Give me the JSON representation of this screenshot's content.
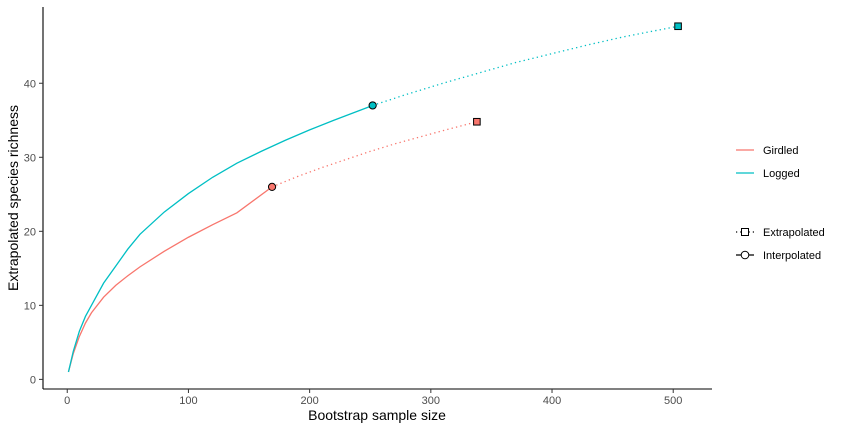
{
  "chart_data": {
    "type": "line",
    "xlabel": "Bootstrap sample size",
    "ylabel": "Extrapolated species richness",
    "xlim": [
      -20,
      532
    ],
    "ylim": [
      -1.3,
      50.3
    ],
    "xticks": [
      0,
      100,
      200,
      300,
      400,
      500
    ],
    "yticks": [
      0,
      10,
      20,
      30,
      40
    ],
    "grid": false,
    "legend_position": "right",
    "series": [
      {
        "name": "Girdled",
        "color": "#F8766D",
        "interpolated": {
          "x": [
            1,
            5,
            10,
            15,
            20,
            30,
            40,
            50,
            60,
            80,
            100,
            120,
            140,
            169
          ],
          "y": [
            1,
            3.5,
            5.8,
            7.6,
            9.0,
            11.1,
            12.7,
            14.0,
            15.2,
            17.3,
            19.2,
            20.9,
            22.5,
            26.0
          ]
        },
        "reference": {
          "x": 169,
          "y": 26.0
        },
        "extrapolated": {
          "x": [
            169,
            190,
            210,
            230,
            250,
            270,
            290,
            310,
            338
          ],
          "y": [
            26.0,
            27.4,
            28.6,
            29.7,
            30.8,
            31.8,
            32.7,
            33.6,
            34.8
          ]
        },
        "endpoint": {
          "x": 338,
          "y": 34.8
        }
      },
      {
        "name": "Logged",
        "color": "#00BFC4",
        "interpolated": {
          "x": [
            1,
            5,
            10,
            15,
            20,
            30,
            40,
            50,
            60,
            80,
            100,
            120,
            140,
            160,
            180,
            200,
            220,
            252
          ],
          "y": [
            1,
            3.8,
            6.5,
            8.5,
            10.0,
            13.0,
            15.3,
            17.6,
            19.6,
            22.6,
            25.1,
            27.3,
            29.2,
            30.8,
            32.3,
            33.7,
            35.0,
            37.0
          ]
        },
        "reference": {
          "x": 252,
          "y": 37.0
        },
        "extrapolated": {
          "x": [
            252,
            280,
            310,
            340,
            370,
            400,
            430,
            460,
            504
          ],
          "y": [
            37.0,
            38.5,
            40.0,
            41.4,
            42.8,
            44.0,
            45.2,
            46.3,
            47.7
          ]
        },
        "endpoint": {
          "x": 504,
          "y": 47.7
        }
      }
    ],
    "legend": {
      "series": [
        "Girdled",
        "Logged"
      ],
      "method": [
        "Extrapolated",
        "Interpolated"
      ]
    }
  }
}
